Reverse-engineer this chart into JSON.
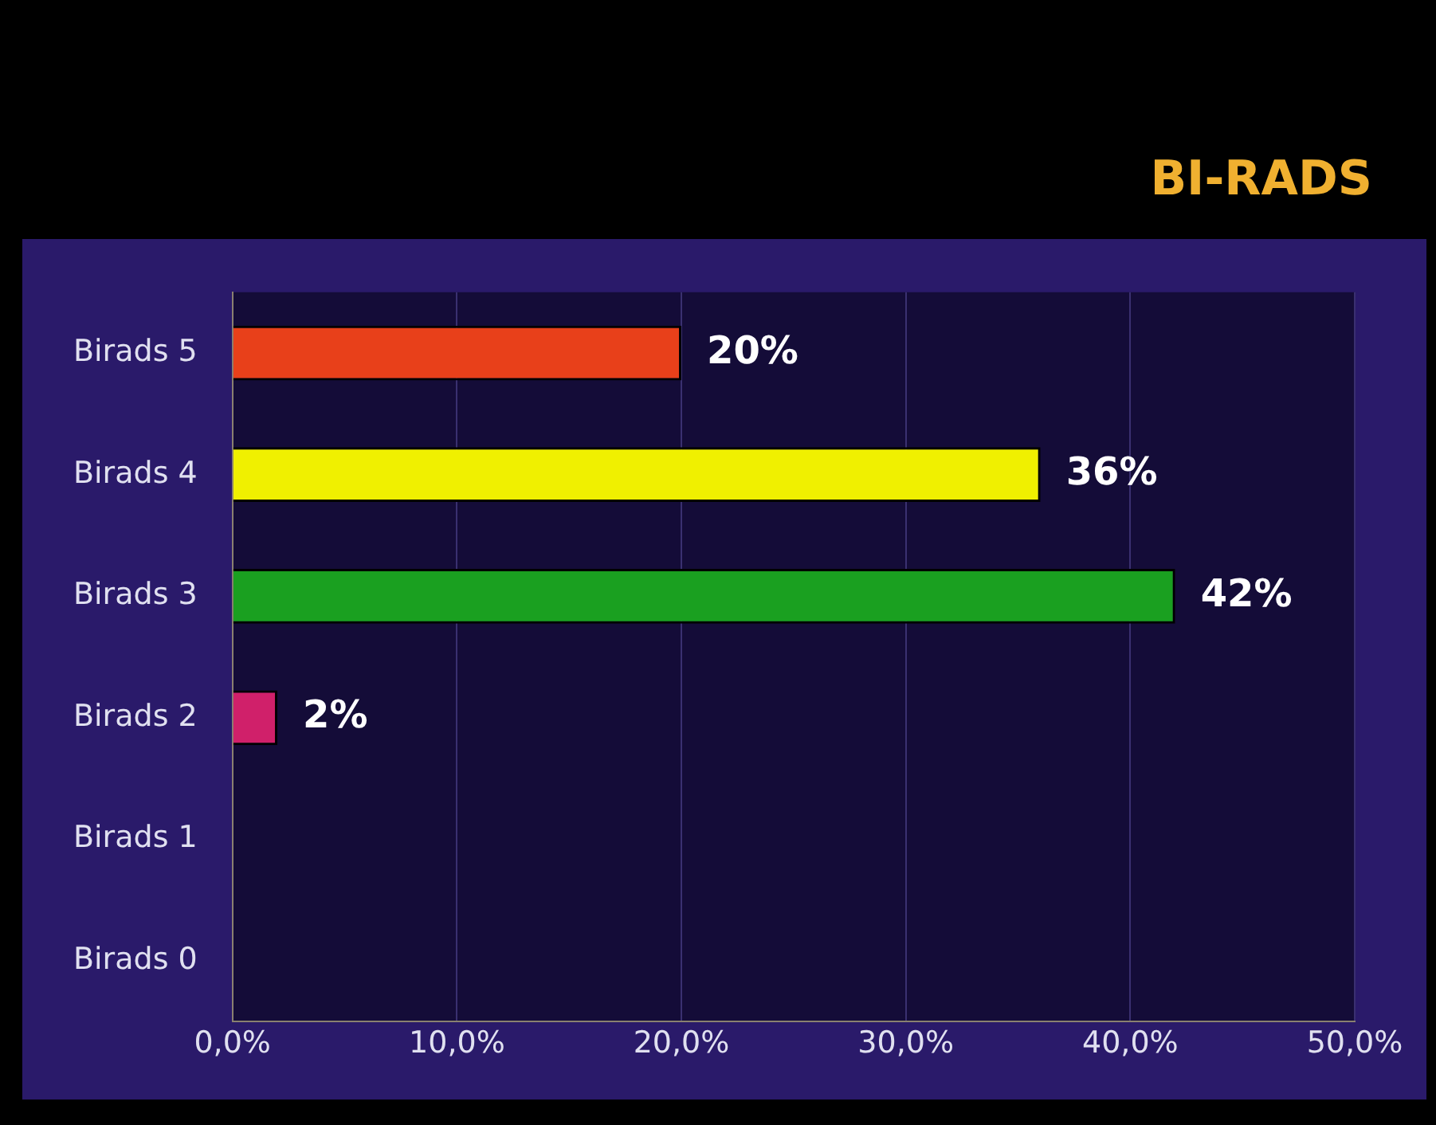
{
  "chart_data": {
    "type": "bar",
    "orientation": "horizontal",
    "title": "BI-RADS",
    "categories": [
      "Birads 5",
      "Birads 4",
      "Birads 3",
      "Birads 2",
      "Birads 1",
      "Birads 0"
    ],
    "values": [
      20,
      36,
      42,
      2,
      0,
      0
    ],
    "colors": [
      "#e8401a",
      "#f0f000",
      "#1aa020",
      "#d0206a",
      "#6a6090",
      "#6a6090"
    ],
    "value_labels": [
      "20%",
      "36%",
      "42%",
      "2%",
      null,
      null
    ],
    "xlim": [
      0,
      50
    ],
    "xticks": [
      {
        "value": 0,
        "label": "0,0%"
      },
      {
        "value": 10,
        "label": "10,0%"
      },
      {
        "value": 20,
        "label": "20,0%"
      },
      {
        "value": 30,
        "label": "30,0%"
      },
      {
        "value": 40,
        "label": "40,0%"
      },
      {
        "value": 50,
        "label": "50,0%"
      }
    ],
    "grid": "x",
    "legend": false
  }
}
